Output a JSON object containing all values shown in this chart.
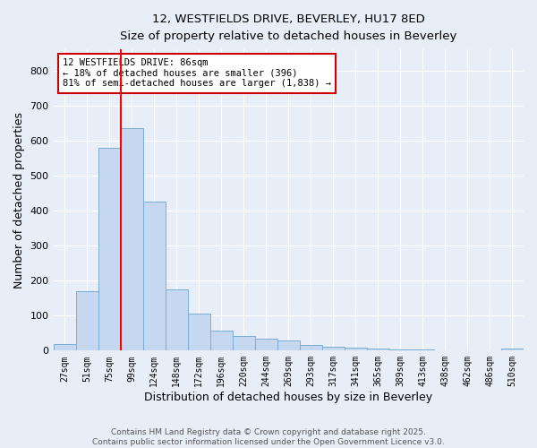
{
  "title1": "12, WESTFIELDS DRIVE, BEVERLEY, HU17 8ED",
  "title2": "Size of property relative to detached houses in Beverley",
  "xlabel": "Distribution of detached houses by size in Beverley",
  "ylabel": "Number of detached properties",
  "bar_color": "#c5d8f0",
  "bar_edge_color": "#7aadd4",
  "categories": [
    "27sqm",
    "51sqm",
    "75sqm",
    "99sqm",
    "124sqm",
    "148sqm",
    "172sqm",
    "196sqm",
    "220sqm",
    "244sqm",
    "269sqm",
    "293sqm",
    "317sqm",
    "341sqm",
    "365sqm",
    "389sqm",
    "413sqm",
    "438sqm",
    "462sqm",
    "486sqm",
    "510sqm"
  ],
  "values": [
    18,
    170,
    580,
    635,
    425,
    175,
    105,
    57,
    42,
    33,
    30,
    15,
    10,
    8,
    6,
    4,
    3,
    2,
    1,
    1,
    6
  ],
  "ylim": [
    0,
    860
  ],
  "yticks": [
    0,
    100,
    200,
    300,
    400,
    500,
    600,
    700,
    800
  ],
  "red_line_x": 2.5,
  "annotation_text": "12 WESTFIELDS DRIVE: 86sqm\n← 18% of detached houses are smaller (396)\n81% of semi-detached houses are larger (1,838) →",
  "annotation_box_color": "#ffffff",
  "annotation_box_edge_color": "#cc0000",
  "footer_text": "Contains HM Land Registry data © Crown copyright and database right 2025.\nContains public sector information licensed under the Open Government Licence v3.0.",
  "background_color": "#e8eef8",
  "grid_color": "#ffffff"
}
